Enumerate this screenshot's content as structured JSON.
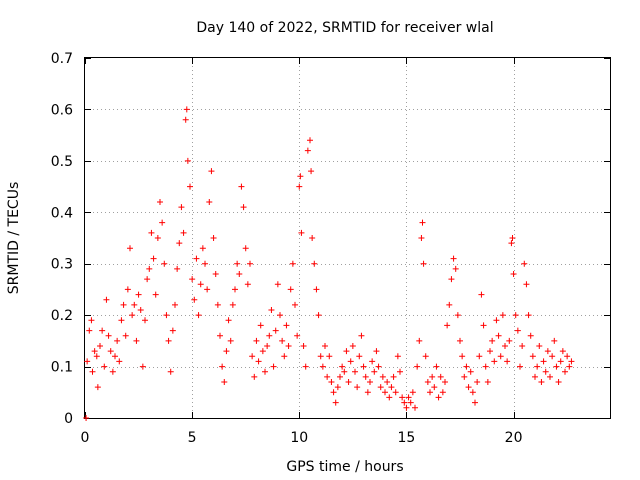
{
  "chart_data": {
    "type": "scatter",
    "title": "Day 140 of 2022, SRMTID for receiver wlal",
    "xlabel": "GPS time / hours",
    "ylabel": "SRMTID / TECUs",
    "xlim": [
      0,
      24.5
    ],
    "ylim": [
      0,
      0.7
    ],
    "xticks": [
      0,
      5,
      10,
      15,
      20
    ],
    "yticks": [
      0,
      0.1,
      0.2,
      0.3,
      0.4,
      0.5,
      0.6,
      0.7
    ],
    "xtick_labels": [
      "0",
      "5",
      "10",
      "15",
      "20"
    ],
    "ytick_labels": [
      "0",
      "0.1",
      "0.2",
      "0.3",
      "0.4",
      "0.5",
      "0.6",
      "0.7"
    ],
    "grid": true,
    "marker": "+",
    "color": "#ff0000",
    "series": [
      {
        "name": "SRMTID",
        "points": [
          [
            0.05,
            0.0
          ],
          [
            0.1,
            0.11
          ],
          [
            0.2,
            0.17
          ],
          [
            0.3,
            0.19
          ],
          [
            0.35,
            0.09
          ],
          [
            0.45,
            0.13
          ],
          [
            0.55,
            0.12
          ],
          [
            0.6,
            0.06
          ],
          [
            0.7,
            0.14
          ],
          [
            0.8,
            0.17
          ],
          [
            0.9,
            0.1
          ],
          [
            1.0,
            0.23
          ],
          [
            1.1,
            0.16
          ],
          [
            1.2,
            0.13
          ],
          [
            1.3,
            0.09
          ],
          [
            1.4,
            0.12
          ],
          [
            1.5,
            0.15
          ],
          [
            1.6,
            0.11
          ],
          [
            1.7,
            0.19
          ],
          [
            1.8,
            0.22
          ],
          [
            1.9,
            0.16
          ],
          [
            2.0,
            0.25
          ],
          [
            2.1,
            0.33
          ],
          [
            2.2,
            0.2
          ],
          [
            2.3,
            0.22
          ],
          [
            2.4,
            0.15
          ],
          [
            2.5,
            0.24
          ],
          [
            2.6,
            0.21
          ],
          [
            2.7,
            0.1
          ],
          [
            2.8,
            0.19
          ],
          [
            2.9,
            0.27
          ],
          [
            3.0,
            0.29
          ],
          [
            3.1,
            0.36
          ],
          [
            3.2,
            0.31
          ],
          [
            3.3,
            0.24
          ],
          [
            3.4,
            0.35
          ],
          [
            3.5,
            0.42
          ],
          [
            3.6,
            0.38
          ],
          [
            3.7,
            0.3
          ],
          [
            3.8,
            0.2
          ],
          [
            3.9,
            0.15
          ],
          [
            4.0,
            0.09
          ],
          [
            4.1,
            0.17
          ],
          [
            4.2,
            0.22
          ],
          [
            4.3,
            0.29
          ],
          [
            4.4,
            0.34
          ],
          [
            4.5,
            0.41
          ],
          [
            4.6,
            0.36
          ],
          [
            4.7,
            0.58
          ],
          [
            4.75,
            0.6
          ],
          [
            4.8,
            0.5
          ],
          [
            4.9,
            0.45
          ],
          [
            5.0,
            0.27
          ],
          [
            5.1,
            0.23
          ],
          [
            5.2,
            0.31
          ],
          [
            5.3,
            0.2
          ],
          [
            5.4,
            0.26
          ],
          [
            5.5,
            0.33
          ],
          [
            5.6,
            0.3
          ],
          [
            5.7,
            0.25
          ],
          [
            5.8,
            0.42
          ],
          [
            5.9,
            0.48
          ],
          [
            6.0,
            0.35
          ],
          [
            6.1,
            0.28
          ],
          [
            6.2,
            0.22
          ],
          [
            6.3,
            0.16
          ],
          [
            6.4,
            0.1
          ],
          [
            6.5,
            0.07
          ],
          [
            6.6,
            0.13
          ],
          [
            6.7,
            0.19
          ],
          [
            6.8,
            0.15
          ],
          [
            6.9,
            0.22
          ],
          [
            7.0,
            0.25
          ],
          [
            7.1,
            0.3
          ],
          [
            7.2,
            0.28
          ],
          [
            7.3,
            0.45
          ],
          [
            7.4,
            0.41
          ],
          [
            7.5,
            0.33
          ],
          [
            7.6,
            0.26
          ],
          [
            7.7,
            0.3
          ],
          [
            7.8,
            0.12
          ],
          [
            7.9,
            0.08
          ],
          [
            8.0,
            0.15
          ],
          [
            8.1,
            0.11
          ],
          [
            8.2,
            0.18
          ],
          [
            8.3,
            0.13
          ],
          [
            8.4,
            0.09
          ],
          [
            8.5,
            0.14
          ],
          [
            8.6,
            0.16
          ],
          [
            8.7,
            0.21
          ],
          [
            8.8,
            0.1
          ],
          [
            8.9,
            0.17
          ],
          [
            9.0,
            0.26
          ],
          [
            9.1,
            0.2
          ],
          [
            9.2,
            0.15
          ],
          [
            9.3,
            0.12
          ],
          [
            9.4,
            0.18
          ],
          [
            9.5,
            0.14
          ],
          [
            9.6,
            0.25
          ],
          [
            9.7,
            0.3
          ],
          [
            9.8,
            0.22
          ],
          [
            9.9,
            0.16
          ],
          [
            10.0,
            0.45
          ],
          [
            10.05,
            0.47
          ],
          [
            10.1,
            0.36
          ],
          [
            10.2,
            0.14
          ],
          [
            10.3,
            0.1
          ],
          [
            10.4,
            0.52
          ],
          [
            10.5,
            0.54
          ],
          [
            10.55,
            0.48
          ],
          [
            10.6,
            0.35
          ],
          [
            10.7,
            0.3
          ],
          [
            10.8,
            0.25
          ],
          [
            10.9,
            0.2
          ],
          [
            11.0,
            0.12
          ],
          [
            11.1,
            0.1
          ],
          [
            11.2,
            0.14
          ],
          [
            11.3,
            0.08
          ],
          [
            11.4,
            0.12
          ],
          [
            11.5,
            0.07
          ],
          [
            11.6,
            0.05
          ],
          [
            11.7,
            0.03
          ],
          [
            11.8,
            0.06
          ],
          [
            11.9,
            0.08
          ],
          [
            12.0,
            0.1
          ],
          [
            12.1,
            0.09
          ],
          [
            12.2,
            0.13
          ],
          [
            12.3,
            0.07
          ],
          [
            12.4,
            0.11
          ],
          [
            12.5,
            0.14
          ],
          [
            12.6,
            0.09
          ],
          [
            12.7,
            0.06
          ],
          [
            12.8,
            0.12
          ],
          [
            12.9,
            0.16
          ],
          [
            13.0,
            0.1
          ],
          [
            13.1,
            0.08
          ],
          [
            13.2,
            0.05
          ],
          [
            13.3,
            0.07
          ],
          [
            13.4,
            0.11
          ],
          [
            13.5,
            0.09
          ],
          [
            13.6,
            0.13
          ],
          [
            13.7,
            0.1
          ],
          [
            13.8,
            0.06
          ],
          [
            13.9,
            0.08
          ],
          [
            14.0,
            0.05
          ],
          [
            14.1,
            0.07
          ],
          [
            14.2,
            0.04
          ],
          [
            14.3,
            0.06
          ],
          [
            14.4,
            0.08
          ],
          [
            14.5,
            0.05
          ],
          [
            14.6,
            0.12
          ],
          [
            14.7,
            0.09
          ],
          [
            14.8,
            0.04
          ],
          [
            14.9,
            0.03
          ],
          [
            15.0,
            0.02
          ],
          [
            15.1,
            0.04
          ],
          [
            15.2,
            0.03
          ],
          [
            15.3,
            0.05
          ],
          [
            15.4,
            0.02
          ],
          [
            15.5,
            0.1
          ],
          [
            15.6,
            0.15
          ],
          [
            15.7,
            0.35
          ],
          [
            15.75,
            0.38
          ],
          [
            15.8,
            0.3
          ],
          [
            15.9,
            0.12
          ],
          [
            16.0,
            0.07
          ],
          [
            16.1,
            0.05
          ],
          [
            16.2,
            0.08
          ],
          [
            16.3,
            0.06
          ],
          [
            16.4,
            0.1
          ],
          [
            16.5,
            0.04
          ],
          [
            16.6,
            0.08
          ],
          [
            16.7,
            0.05
          ],
          [
            16.8,
            0.07
          ],
          [
            16.9,
            0.18
          ],
          [
            17.0,
            0.22
          ],
          [
            17.1,
            0.27
          ],
          [
            17.2,
            0.31
          ],
          [
            17.3,
            0.29
          ],
          [
            17.4,
            0.2
          ],
          [
            17.5,
            0.15
          ],
          [
            17.6,
            0.12
          ],
          [
            17.7,
            0.08
          ],
          [
            17.8,
            0.1
          ],
          [
            17.9,
            0.06
          ],
          [
            18.0,
            0.09
          ],
          [
            18.1,
            0.05
          ],
          [
            18.2,
            0.03
          ],
          [
            18.3,
            0.07
          ],
          [
            18.4,
            0.12
          ],
          [
            18.5,
            0.24
          ],
          [
            18.6,
            0.18
          ],
          [
            18.7,
            0.1
          ],
          [
            18.8,
            0.07
          ],
          [
            18.9,
            0.13
          ],
          [
            19.0,
            0.15
          ],
          [
            19.1,
            0.11
          ],
          [
            19.2,
            0.19
          ],
          [
            19.3,
            0.16
          ],
          [
            19.4,
            0.12
          ],
          [
            19.5,
            0.2
          ],
          [
            19.6,
            0.14
          ],
          [
            19.7,
            0.11
          ],
          [
            19.8,
            0.15
          ],
          [
            19.9,
            0.34
          ],
          [
            19.95,
            0.35
          ],
          [
            20.0,
            0.28
          ],
          [
            20.1,
            0.2
          ],
          [
            20.2,
            0.17
          ],
          [
            20.3,
            0.1
          ],
          [
            20.4,
            0.14
          ],
          [
            20.5,
            0.3
          ],
          [
            20.6,
            0.26
          ],
          [
            20.7,
            0.2
          ],
          [
            20.8,
            0.16
          ],
          [
            20.9,
            0.12
          ],
          [
            21.0,
            0.08
          ],
          [
            21.1,
            0.1
          ],
          [
            21.2,
            0.14
          ],
          [
            21.3,
            0.07
          ],
          [
            21.4,
            0.11
          ],
          [
            21.5,
            0.09
          ],
          [
            21.6,
            0.13
          ],
          [
            21.7,
            0.08
          ],
          [
            21.8,
            0.12
          ],
          [
            21.9,
            0.15
          ],
          [
            22.0,
            0.1
          ],
          [
            22.1,
            0.07
          ],
          [
            22.2,
            0.11
          ],
          [
            22.3,
            0.13
          ],
          [
            22.4,
            0.09
          ],
          [
            22.5,
            0.12
          ],
          [
            22.6,
            0.1
          ],
          [
            22.7,
            0.11
          ]
        ]
      }
    ]
  }
}
